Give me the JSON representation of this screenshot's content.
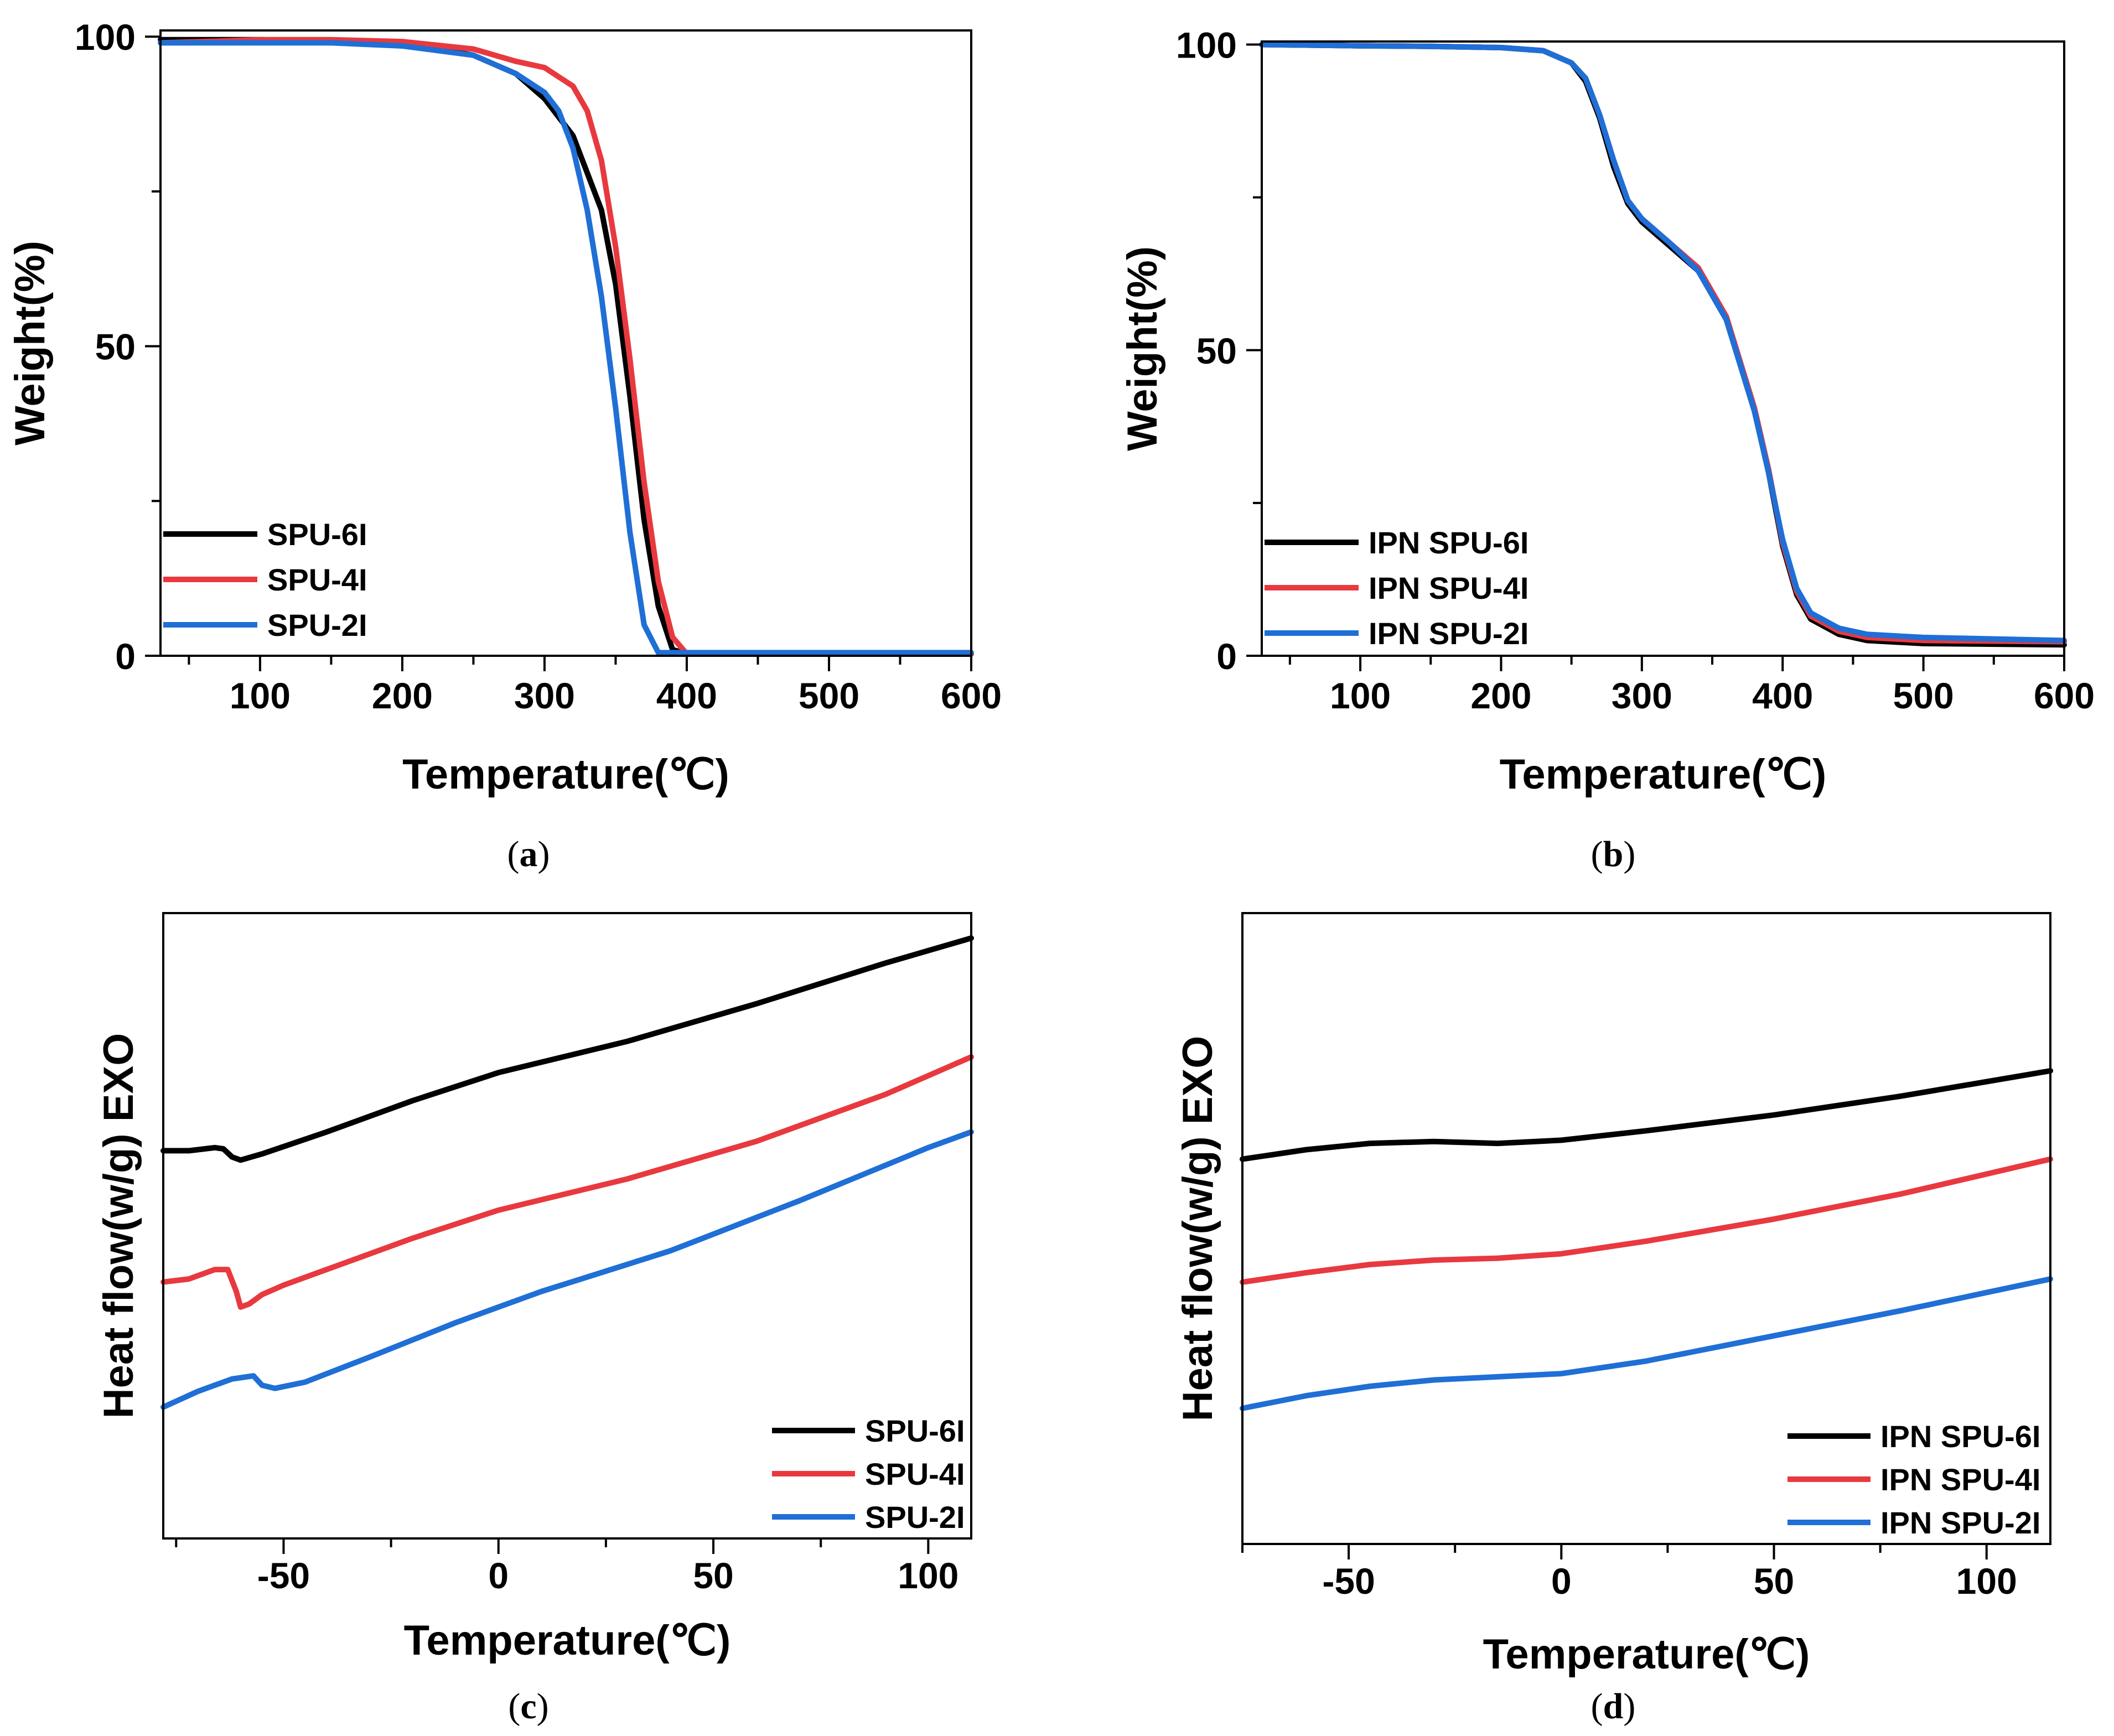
{
  "colors": {
    "black": "#000000",
    "red": "#e8393f",
    "blue": "#1f6fd6"
  },
  "chart_data": [
    {
      "id": "a",
      "type": "line",
      "caption": "a",
      "xlabel": "Temperature(℃)",
      "ylabel": "Weight(%)",
      "xlim": [
        30,
        600
      ],
      "ylim": [
        0,
        101
      ],
      "xticks": [
        100,
        200,
        300,
        400,
        500,
        600
      ],
      "yticks": [
        0,
        50,
        100
      ],
      "legend_position": "bottom-left",
      "series": [
        {
          "name": "SPU-6I",
          "color": "#000000",
          "x": [
            30,
            100,
            150,
            200,
            250,
            280,
            300,
            320,
            340,
            350,
            360,
            370,
            380,
            390,
            400,
            600
          ],
          "y": [
            99.5,
            99.5,
            99.3,
            99,
            97,
            94,
            90,
            84,
            72,
            60,
            42,
            22,
            8,
            1,
            0.3,
            0.3
          ]
        },
        {
          "name": "SPU-4I",
          "color": "#e8393f",
          "x": [
            30,
            100,
            150,
            200,
            250,
            280,
            300,
            320,
            330,
            340,
            350,
            360,
            370,
            380,
            390,
            400,
            600
          ],
          "y": [
            99,
            99.5,
            99.5,
            99.2,
            98,
            96,
            95,
            92,
            88,
            80,
            66,
            48,
            28,
            12,
            3,
            0.3,
            0.3
          ]
        },
        {
          "name": "SPU-2I",
          "color": "#1f6fd6",
          "x": [
            30,
            100,
            150,
            200,
            250,
            280,
            300,
            310,
            320,
            330,
            340,
            350,
            360,
            370,
            380,
            600
          ],
          "y": [
            99,
            99,
            99,
            98.5,
            97,
            94,
            91,
            88,
            82,
            72,
            58,
            40,
            20,
            5,
            0.5,
            0.5
          ]
        }
      ]
    },
    {
      "id": "b",
      "type": "line",
      "caption": "b",
      "xlabel": "Temperature(℃)",
      "ylabel": "Weight(%)",
      "xlim": [
        30,
        600
      ],
      "ylim": [
        0,
        100.5
      ],
      "xticks": [
        100,
        200,
        300,
        400,
        500,
        600
      ],
      "yticks": [
        0,
        50,
        100
      ],
      "legend_position": "bottom-left",
      "series": [
        {
          "name": "IPN SPU-6I",
          "color": "#000000",
          "x": [
            30,
            100,
            150,
            200,
            230,
            250,
            260,
            270,
            280,
            290,
            300,
            320,
            340,
            360,
            380,
            390,
            400,
            410,
            420,
            440,
            460,
            500,
            600
          ],
          "y": [
            100,
            99.8,
            99.7,
            99.5,
            99,
            97,
            94,
            88,
            80,
            74,
            71,
            67,
            63,
            55,
            40,
            30,
            18,
            10,
            6,
            3.5,
            2.5,
            2,
            1.8
          ]
        },
        {
          "name": "IPN SPU-4I",
          "color": "#e8393f",
          "x": [
            30,
            100,
            150,
            200,
            230,
            250,
            260,
            270,
            280,
            290,
            300,
            320,
            340,
            360,
            380,
            390,
            400,
            410,
            420,
            440,
            460,
            500,
            600
          ],
          "y": [
            100,
            99.8,
            99.7,
            99.5,
            99,
            97,
            94.5,
            88.5,
            81,
            74.5,
            71.5,
            67.5,
            63.5,
            55.5,
            40.5,
            30.5,
            18.5,
            10.5,
            6.5,
            4,
            3,
            2.5,
            2.3
          ]
        },
        {
          "name": "IPN SPU-2I",
          "color": "#1f6fd6",
          "x": [
            30,
            100,
            150,
            200,
            230,
            250,
            260,
            270,
            280,
            290,
            300,
            320,
            340,
            360,
            380,
            390,
            400,
            410,
            420,
            440,
            460,
            500,
            600
          ],
          "y": [
            100,
            99.8,
            99.7,
            99.5,
            99,
            97,
            94.5,
            88.5,
            81,
            74.5,
            71.5,
            67.5,
            63,
            55,
            40,
            30,
            19,
            11,
            7,
            4.5,
            3.5,
            3,
            2.5
          ]
        }
      ]
    },
    {
      "id": "c",
      "type": "line",
      "caption": "c",
      "xlabel": "Temperature(℃)",
      "ylabel": "Heat flow(w/g) EXO",
      "xlim": [
        -78,
        110
      ],
      "ylim": [
        0,
        100
      ],
      "xticks": [
        -50,
        0,
        50,
        100
      ],
      "yticks": [],
      "legend_position": "bottom-right",
      "series": [
        {
          "name": "SPU-6I",
          "color": "#000000",
          "x": [
            -78,
            -72,
            -66,
            -64,
            -62,
            -60,
            -55,
            -40,
            -20,
            0,
            30,
            60,
            90,
            110
          ],
          "y": [
            62,
            62,
            62.5,
            62.3,
            61,
            60.5,
            61.5,
            65,
            70,
            74.5,
            79.5,
            85.5,
            92,
            96
          ]
        },
        {
          "name": "SPU-4I",
          "color": "#e8393f",
          "x": [
            -78,
            -72,
            -66,
            -63,
            -61,
            -60,
            -58,
            -55,
            -50,
            -40,
            -20,
            0,
            30,
            60,
            90,
            110
          ],
          "y": [
            41,
            41.5,
            43,
            43,
            39.5,
            37,
            37.5,
            39,
            40.5,
            43,
            48,
            52.5,
            57.5,
            63.5,
            71,
            77
          ]
        },
        {
          "name": "SPU-2I",
          "color": "#1f6fd6",
          "x": [
            -78,
            -70,
            -62,
            -57,
            -55,
            -52,
            -45,
            -30,
            -10,
            10,
            40,
            70,
            100,
            110
          ],
          "y": [
            21,
            23.5,
            25.5,
            26,
            24.5,
            24,
            25,
            29,
            34.5,
            39.5,
            46,
            54,
            62.5,
            65
          ]
        }
      ]
    },
    {
      "id": "d",
      "type": "line",
      "caption": "d",
      "xlabel": "Temperature(℃)",
      "ylabel": "Heat flow(w/g) EXO",
      "xlim": [
        -75,
        115
      ],
      "ylim": [
        0,
        100
      ],
      "xticks": [
        -50,
        0,
        50,
        100
      ],
      "yticks": [],
      "legend_position": "bottom-right",
      "series": [
        {
          "name": "IPN SPU-6I",
          "color": "#000000",
          "x": [
            -75,
            -60,
            -45,
            -30,
            -15,
            0,
            20,
            50,
            80,
            115
          ],
          "y": [
            61,
            62.5,
            63.5,
            63.8,
            63.5,
            64,
            65.5,
            68,
            71,
            75
          ]
        },
        {
          "name": "IPN SPU-4I",
          "color": "#e8393f",
          "x": [
            -75,
            -60,
            -45,
            -30,
            -15,
            0,
            20,
            50,
            80,
            115
          ],
          "y": [
            41.5,
            43,
            44.3,
            45,
            45.3,
            46,
            48,
            51.5,
            55.5,
            61
          ]
        },
        {
          "name": "IPN SPU-2I",
          "color": "#1f6fd6",
          "x": [
            -75,
            -60,
            -45,
            -30,
            -15,
            0,
            20,
            50,
            80,
            115
          ],
          "y": [
            21.5,
            23.5,
            25,
            26,
            26.5,
            27,
            29,
            33,
            37,
            42
          ]
        }
      ]
    }
  ]
}
